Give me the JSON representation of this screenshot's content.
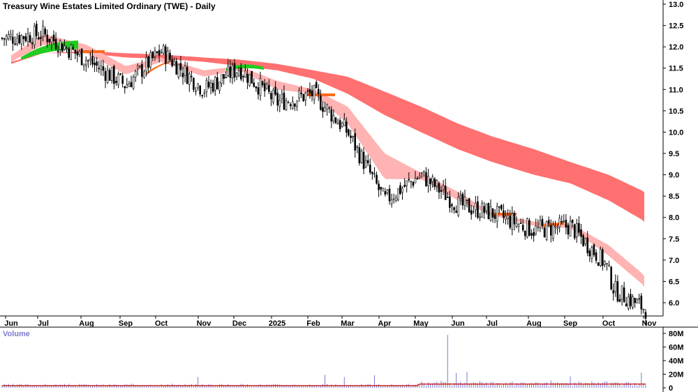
{
  "title": "Treasury Wine Estates Limited Ordinary (TWE) - Daily",
  "volume_label": "Volume",
  "colors": {
    "background": "#ffffff",
    "candle": "#000000",
    "short_ribbon": "#ffb3b3",
    "long_ribbon": "#ff7070",
    "bull_ribbon": "#22cc22",
    "cross_ribbon": "#ff6a1a",
    "volume_bar": "#7b7bd1",
    "volume_avg": "#cc2222"
  },
  "chart_data": [
    {
      "type": "candlestick",
      "title": "Treasury Wine Estates Limited Ordinary (TWE) - Daily",
      "y_ticks": [
        "13.0",
        "12.5",
        "12.0",
        "11.5",
        "11.0",
        "10.5",
        "10.0",
        "9.5",
        "9.0",
        "8.5",
        "8.0",
        "7.5",
        "7.0",
        "6.5",
        "6.0"
      ],
      "ylim": [
        5.8,
        13.0
      ],
      "x_ticks": [
        "Jun",
        "Jul",
        "Aug",
        "Sep",
        "Oct",
        "Nov",
        "Dec",
        "2025",
        "Feb",
        "Mar",
        "Apr",
        "May",
        "Jun",
        "Jul",
        "Aug",
        "Sep",
        "Oct",
        "Nov"
      ],
      "price_path": [
        {
          "month": "Jun",
          "close": 12.2
        },
        {
          "month": "Jul",
          "close": 12.3
        },
        {
          "month": "Aug",
          "close": 11.7
        },
        {
          "month": "Sep",
          "close": 11.1
        },
        {
          "month": "Oct",
          "close": 11.9
        },
        {
          "month": "Nov",
          "close": 11.0
        },
        {
          "month": "Dec",
          "close": 11.5
        },
        {
          "month": "2025",
          "close": 10.7
        },
        {
          "month": "Feb",
          "close": 10.9
        },
        {
          "month": "Mar",
          "close": 10.0
        },
        {
          "month": "Apr",
          "close": 8.4
        },
        {
          "month": "May",
          "close": 9.0
        },
        {
          "month": "Jun",
          "close": 8.3
        },
        {
          "month": "Jul",
          "close": 8.1
        },
        {
          "month": "Aug",
          "close": 7.7
        },
        {
          "month": "Sep",
          "close": 7.8
        },
        {
          "month": "Oct",
          "close": 6.9
        },
        {
          "month": "Oct-gap",
          "close": 6.3
        },
        {
          "month": "Nov",
          "close": 5.85
        }
      ],
      "short_ribbon_path": [
        {
          "month": "Jun",
          "lo": 11.65,
          "hi": 11.8
        },
        {
          "month": "Jul",
          "lo": 12.05,
          "hi": 12.3
        },
        {
          "month": "Aug",
          "lo": 11.85,
          "hi": 12.05
        },
        {
          "month": "Sep",
          "lo": 11.35,
          "hi": 11.55
        },
        {
          "month": "Oct",
          "lo": 11.65,
          "hi": 11.75
        },
        {
          "month": "Nov",
          "lo": 11.3,
          "hi": 11.45
        },
        {
          "month": "Dec",
          "lo": 11.45,
          "hi": 11.55
        },
        {
          "month": "2025",
          "lo": 11.0,
          "hi": 11.2
        },
        {
          "month": "Feb",
          "lo": 10.9,
          "hi": 11.0
        },
        {
          "month": "Mar",
          "lo": 10.2,
          "hi": 10.6
        },
        {
          "month": "Apr",
          "lo": 8.9,
          "hi": 9.5
        },
        {
          "month": "May",
          "lo": 8.9,
          "hi": 9.05
        },
        {
          "month": "Jun",
          "lo": 8.4,
          "hi": 8.6
        },
        {
          "month": "Jul",
          "lo": 8.05,
          "hi": 8.1
        },
        {
          "month": "Aug",
          "lo": 7.8,
          "hi": 7.9
        },
        {
          "month": "Sep",
          "lo": 7.75,
          "hi": 7.85
        },
        {
          "month": "Oct",
          "lo": 7.1,
          "hi": 7.35
        },
        {
          "month": "Nov",
          "lo": 6.3,
          "hi": 6.55
        }
      ],
      "long_ribbon_path": [
        {
          "month": "Jun",
          "lo": 11.6,
          "hi": 11.65
        },
        {
          "month": "Jul",
          "lo": 11.85,
          "hi": 11.85
        },
        {
          "month": "Aug",
          "lo": 11.85,
          "hi": 11.9
        },
        {
          "month": "Sep",
          "lo": 11.75,
          "hi": 11.85
        },
        {
          "month": "Oct",
          "lo": 11.72,
          "hi": 11.82
        },
        {
          "month": "Nov",
          "lo": 11.65,
          "hi": 11.75
        },
        {
          "month": "Dec",
          "lo": 11.55,
          "hi": 11.7
        },
        {
          "month": "2025",
          "lo": 11.45,
          "hi": 11.6
        },
        {
          "month": "Feb",
          "lo": 11.25,
          "hi": 11.45
        },
        {
          "month": "Mar",
          "lo": 10.9,
          "hi": 11.3
        },
        {
          "month": "Apr",
          "lo": 10.4,
          "hi": 10.95
        },
        {
          "month": "May",
          "lo": 10.0,
          "hi": 10.6
        },
        {
          "month": "Jun",
          "lo": 9.6,
          "hi": 10.2
        },
        {
          "month": "Jul",
          "lo": 9.3,
          "hi": 9.9
        },
        {
          "month": "Aug",
          "lo": 9.0,
          "hi": 9.6
        },
        {
          "month": "Sep",
          "lo": 8.8,
          "hi": 9.3
        },
        {
          "month": "Oct",
          "lo": 8.4,
          "hi": 9.0
        },
        {
          "month": "Nov",
          "lo": 7.85,
          "hi": 8.55
        }
      ]
    },
    {
      "type": "bar",
      "title": "Volume",
      "y_ticks": [
        "80M",
        "60M",
        "40M",
        "20M",
        "0"
      ],
      "ylim": [
        0,
        80
      ],
      "spike": {
        "month": "May",
        "value_m": 78
      }
    }
  ]
}
